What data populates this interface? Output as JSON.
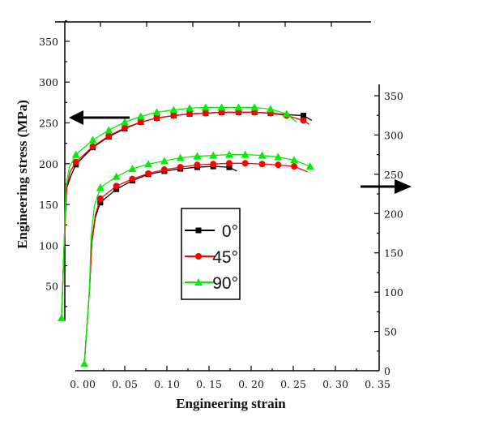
{
  "chart_data": {
    "type": "line",
    "title": "",
    "xlabel": "Engineering strain",
    "ylabel": "Engineering stress (MPa)",
    "x_ticks": [
      "0. 00",
      "0. 05",
      "0. 10",
      "0. 15",
      "0. 20",
      "0. 25",
      "0. 30",
      "0. 35"
    ],
    "x_tick_values": [
      0,
      0.05,
      0.1,
      0.15,
      0.2,
      0.25,
      0.3,
      0.35
    ],
    "xlim": [
      -0.03,
      0.35
    ],
    "left_axis": {
      "ticks": [
        "50",
        "100",
        "150",
        "200",
        "250",
        "300",
        "350"
      ],
      "tick_values": [
        50,
        100,
        150,
        200,
        250,
        300,
        350
      ],
      "ylim": [
        0,
        375
      ]
    },
    "right_axis": {
      "ticks": [
        "0",
        "50",
        "100",
        "150",
        "200",
        "250",
        "300",
        "350"
      ],
      "tick_values": [
        0,
        50,
        100,
        150,
        200,
        250,
        300,
        350
      ],
      "ylim": [
        0,
        365
      ]
    },
    "grid": false,
    "legend": {
      "position": "center",
      "entries": [
        "0°",
        "45°",
        "90°"
      ]
    },
    "annotations": [
      {
        "type": "arrow",
        "direction": "left",
        "meaning": "upper curve group uses left axis"
      },
      {
        "type": "arrow",
        "direction": "right",
        "meaning": "lower curve group uses right axis"
      }
    ],
    "series": [
      {
        "name": "0°",
        "color": "#000000",
        "marker": "square",
        "axis": "left",
        "curve": [
          [
            -0.025,
            11
          ],
          [
            -0.022,
            100
          ],
          [
            -0.019,
            170
          ],
          [
            -0.014,
            185
          ],
          [
            -0.008,
            199
          ],
          [
            0.012,
            220
          ],
          [
            0.031,
            233
          ],
          [
            0.05,
            243
          ],
          [
            0.069,
            251
          ],
          [
            0.088,
            256
          ],
          [
            0.108,
            259
          ],
          [
            0.127,
            261
          ],
          [
            0.146,
            262
          ],
          [
            0.165,
            263
          ],
          [
            0.185,
            263
          ],
          [
            0.204,
            263
          ],
          [
            0.223,
            262
          ],
          [
            0.242,
            260
          ],
          [
            0.262,
            259
          ],
          [
            0.272,
            253
          ]
        ],
        "markers": [
          [
            -0.008,
            199
          ],
          [
            0.012,
            220
          ],
          [
            0.031,
            233
          ],
          [
            0.05,
            243
          ],
          [
            0.069,
            251
          ],
          [
            0.088,
            256
          ],
          [
            0.108,
            259
          ],
          [
            0.127,
            261
          ],
          [
            0.146,
            262
          ],
          [
            0.165,
            263
          ],
          [
            0.185,
            263
          ],
          [
            0.204,
            263
          ],
          [
            0.223,
            262
          ],
          [
            0.262,
            259
          ]
        ]
      },
      {
        "name": "45°",
        "color": "#ff0000",
        "marker": "circle",
        "axis": "left",
        "curve": [
          [
            -0.025,
            11
          ],
          [
            -0.022,
            100
          ],
          [
            -0.019,
            170
          ],
          [
            -0.015,
            190
          ],
          [
            -0.008,
            202
          ],
          [
            0.012,
            221
          ],
          [
            0.031,
            234
          ],
          [
            0.05,
            244
          ],
          [
            0.069,
            251
          ],
          [
            0.088,
            256
          ],
          [
            0.108,
            259
          ],
          [
            0.127,
            261
          ],
          [
            0.146,
            262
          ],
          [
            0.165,
            263
          ],
          [
            0.185,
            263
          ],
          [
            0.204,
            263
          ],
          [
            0.223,
            262
          ],
          [
            0.242,
            259
          ],
          [
            0.262,
            253
          ],
          [
            0.269,
            248
          ]
        ],
        "markers": [
          [
            -0.008,
            202
          ],
          [
            0.012,
            221
          ],
          [
            0.031,
            234
          ],
          [
            0.05,
            244
          ],
          [
            0.069,
            251
          ],
          [
            0.088,
            256
          ],
          [
            0.108,
            259
          ],
          [
            0.127,
            261
          ],
          [
            0.146,
            262
          ],
          [
            0.165,
            263
          ],
          [
            0.185,
            263
          ],
          [
            0.204,
            263
          ],
          [
            0.223,
            262
          ],
          [
            0.242,
            259
          ],
          [
            0.262,
            253
          ]
        ]
      },
      {
        "name": "90°",
        "color": "#00ee00",
        "marker": "triangle",
        "axis": "left",
        "curve": [
          [
            -0.025,
            11
          ],
          [
            -0.022,
            100
          ],
          [
            -0.02,
            170
          ],
          [
            -0.016,
            195
          ],
          [
            -0.008,
            211
          ],
          [
            0.012,
            229
          ],
          [
            0.031,
            241
          ],
          [
            0.05,
            251
          ],
          [
            0.069,
            258
          ],
          [
            0.088,
            263
          ],
          [
            0.108,
            266
          ],
          [
            0.127,
            268
          ],
          [
            0.146,
            269
          ],
          [
            0.165,
            269
          ],
          [
            0.185,
            269
          ],
          [
            0.204,
            269
          ],
          [
            0.223,
            267
          ],
          [
            0.242,
            261
          ],
          [
            0.254,
            251
          ]
        ],
        "markers": [
          [
            -0.025,
            11
          ],
          [
            -0.008,
            211
          ],
          [
            0.012,
            229
          ],
          [
            0.031,
            241
          ],
          [
            0.05,
            251
          ],
          [
            0.069,
            258
          ],
          [
            0.088,
            263
          ],
          [
            0.108,
            266
          ],
          [
            0.127,
            268
          ],
          [
            0.146,
            269
          ],
          [
            0.165,
            269
          ],
          [
            0.185,
            269
          ],
          [
            0.204,
            269
          ],
          [
            0.223,
            267
          ],
          [
            0.242,
            261
          ]
        ]
      },
      {
        "name": "0°",
        "color": "#000000",
        "marker": "square",
        "axis": "right",
        "curve": [
          [
            0.002,
            9
          ],
          [
            0.008,
            100
          ],
          [
            0.011,
            164
          ],
          [
            0.015,
            195
          ],
          [
            0.021,
            214
          ],
          [
            0.04,
            231
          ],
          [
            0.059,
            242
          ],
          [
            0.078,
            250
          ],
          [
            0.097,
            254
          ],
          [
            0.116,
            257
          ],
          [
            0.136,
            259
          ],
          [
            0.155,
            260
          ],
          [
            0.174,
            259
          ],
          [
            0.183,
            254
          ]
        ],
        "markers": [
          [
            0.021,
            214
          ],
          [
            0.04,
            231
          ],
          [
            0.059,
            242
          ],
          [
            0.078,
            250
          ],
          [
            0.097,
            254
          ],
          [
            0.116,
            257
          ],
          [
            0.136,
            259
          ],
          [
            0.155,
            260
          ],
          [
            0.174,
            259
          ]
        ]
      },
      {
        "name": "45°",
        "color": "#ff0000",
        "marker": "circle",
        "axis": "right",
        "curve": [
          [
            0.002,
            9
          ],
          [
            0.008,
            100
          ],
          [
            0.011,
            166
          ],
          [
            0.015,
            198
          ],
          [
            0.021,
            219
          ],
          [
            0.04,
            235
          ],
          [
            0.059,
            244
          ],
          [
            0.078,
            251
          ],
          [
            0.097,
            256
          ],
          [
            0.116,
            259
          ],
          [
            0.136,
            262
          ],
          [
            0.155,
            263
          ],
          [
            0.174,
            264
          ],
          [
            0.193,
            264
          ],
          [
            0.213,
            263
          ],
          [
            0.232,
            262
          ],
          [
            0.251,
            260
          ],
          [
            0.267,
            253
          ]
        ],
        "markers": [
          [
            0.021,
            219
          ],
          [
            0.04,
            235
          ],
          [
            0.059,
            244
          ],
          [
            0.078,
            251
          ],
          [
            0.097,
            256
          ],
          [
            0.116,
            259
          ],
          [
            0.136,
            262
          ],
          [
            0.155,
            263
          ],
          [
            0.174,
            264
          ],
          [
            0.193,
            264
          ],
          [
            0.213,
            263
          ],
          [
            0.232,
            262
          ],
          [
            0.251,
            260
          ]
        ]
      },
      {
        "name": "90°",
        "color": "#00ee00",
        "marker": "triangle",
        "axis": "right",
        "curve": [
          [
            0.002,
            9
          ],
          [
            0.008,
            100
          ],
          [
            0.01,
            170
          ],
          [
            0.014,
            210
          ],
          [
            0.021,
            233
          ],
          [
            0.04,
            247
          ],
          [
            0.059,
            257
          ],
          [
            0.078,
            263
          ],
          [
            0.097,
            267
          ],
          [
            0.116,
            271
          ],
          [
            0.136,
            273
          ],
          [
            0.155,
            274
          ],
          [
            0.174,
            275
          ],
          [
            0.193,
            275
          ],
          [
            0.213,
            274
          ],
          [
            0.232,
            272
          ],
          [
            0.251,
            268
          ],
          [
            0.27,
            260
          ]
        ],
        "markers": [
          [
            0.002,
            9
          ],
          [
            0.021,
            233
          ],
          [
            0.04,
            247
          ],
          [
            0.059,
            257
          ],
          [
            0.078,
            263
          ],
          [
            0.097,
            267
          ],
          [
            0.116,
            271
          ],
          [
            0.136,
            273
          ],
          [
            0.155,
            274
          ],
          [
            0.174,
            275
          ],
          [
            0.193,
            275
          ],
          [
            0.213,
            274
          ],
          [
            0.232,
            272
          ],
          [
            0.251,
            268
          ],
          [
            0.27,
            260
          ]
        ]
      }
    ]
  }
}
